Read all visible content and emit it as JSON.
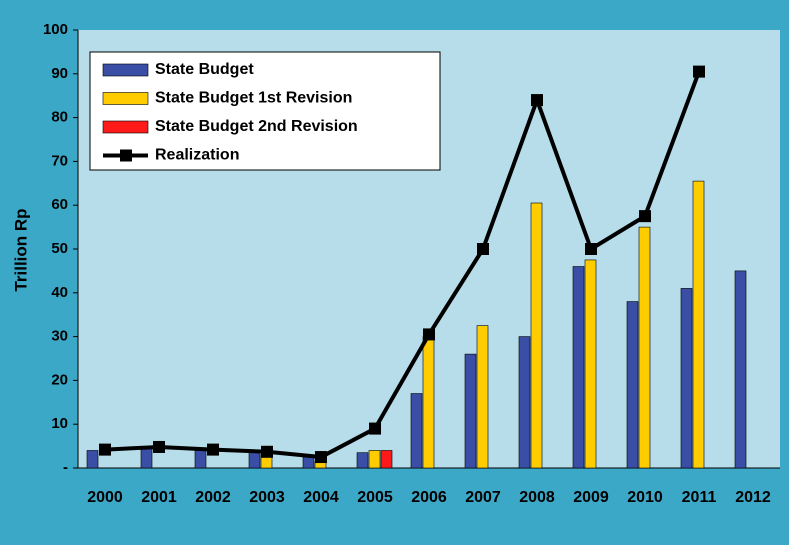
{
  "chart_data": {
    "type": "bar",
    "ylabel": "Trillion Rp",
    "categories": [
      "2000",
      "2001",
      "2002",
      "2003",
      "2004",
      "2005",
      "2006",
      "2007",
      "2008",
      "2009",
      "2010",
      "2011",
      "2012"
    ],
    "series": [
      {
        "name": "State Budget",
        "color": "#3a4ea6",
        "values": [
          4,
          4.5,
          4,
          4,
          2.5,
          3.5,
          17,
          26,
          30,
          46,
          38,
          41,
          45
        ]
      },
      {
        "name": "State Budget 1st Revision",
        "color": "#ffcc00",
        "values": [
          null,
          null,
          null,
          3,
          1.5,
          4,
          30,
          32.5,
          60.5,
          47.5,
          55,
          65.5,
          null
        ]
      },
      {
        "name": "State Budget 2nd Revision",
        "color": "#ff1a1a",
        "values": [
          null,
          null,
          null,
          null,
          null,
          4,
          null,
          null,
          null,
          null,
          null,
          null,
          null
        ]
      },
      {
        "name": "Realization",
        "type": "line",
        "color": "#000000",
        "values": [
          4.2,
          4.8,
          4.2,
          3.7,
          2.5,
          9,
          30.5,
          50,
          84,
          50,
          57.5,
          90.5,
          null
        ]
      }
    ],
    "ylim": [
      0,
      100
    ],
    "yticks": [
      {
        "value": 0,
        "label": "-"
      },
      10,
      20,
      30,
      40,
      50,
      60,
      70,
      80,
      90,
      100
    ],
    "legend": "upper left"
  }
}
